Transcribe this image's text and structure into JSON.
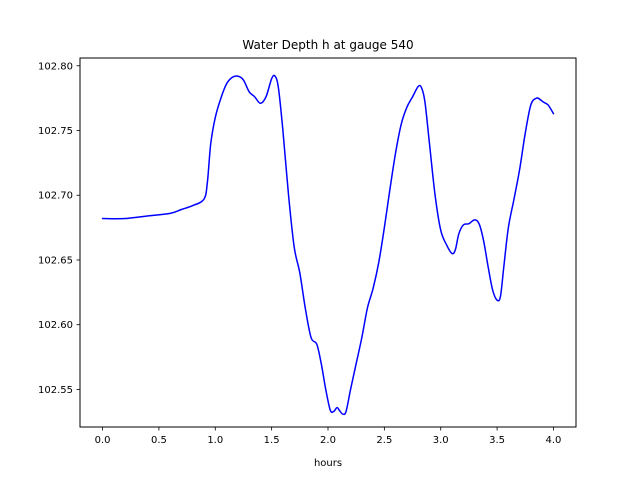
{
  "chart_data": {
    "type": "line",
    "title": "Water Depth h at gauge 540",
    "xlabel": "hours",
    "ylabel": "",
    "xlim": [
      -0.2,
      4.2
    ],
    "ylim": [
      102.521,
      102.806
    ],
    "x_ticks": [
      0.0,
      0.5,
      1.0,
      1.5,
      2.0,
      2.5,
      3.0,
      3.5,
      4.0
    ],
    "x_tick_labels": [
      "0.0",
      "0.5",
      "1.0",
      "1.5",
      "2.0",
      "2.5",
      "3.0",
      "3.5",
      "4.0"
    ],
    "y_ticks": [
      102.55,
      102.6,
      102.65,
      102.7,
      102.75,
      102.8
    ],
    "y_tick_labels": [
      "102.55",
      "102.60",
      "102.65",
      "102.70",
      "102.75",
      "102.80"
    ],
    "grid": false,
    "legend": "none",
    "series": [
      {
        "color": "#0000ff",
        "x": [
          0.0,
          0.2,
          0.4,
          0.6,
          0.7,
          0.8,
          0.9,
          0.93,
          0.96,
          1.0,
          1.05,
          1.1,
          1.15,
          1.2,
          1.25,
          1.3,
          1.35,
          1.4,
          1.45,
          1.5,
          1.53,
          1.56,
          1.6,
          1.65,
          1.7,
          1.75,
          1.8,
          1.85,
          1.9,
          1.94,
          1.98,
          2.02,
          2.05,
          2.08,
          2.1,
          2.13,
          2.16,
          2.2,
          2.25,
          2.3,
          2.35,
          2.4,
          2.45,
          2.5,
          2.55,
          2.6,
          2.65,
          2.7,
          2.75,
          2.8,
          2.83,
          2.86,
          2.9,
          2.95,
          3.0,
          3.05,
          3.1,
          3.13,
          3.16,
          3.2,
          3.25,
          3.3,
          3.34,
          3.38,
          3.42,
          3.46,
          3.5,
          3.53,
          3.56,
          3.6,
          3.65,
          3.7,
          3.75,
          3.8,
          3.85,
          3.88,
          3.91,
          3.95,
          3.98,
          4.0
        ],
        "y": [
          102.682,
          102.682,
          102.684,
          102.686,
          102.689,
          102.692,
          102.697,
          102.71,
          102.74,
          102.76,
          102.775,
          102.786,
          102.791,
          102.792,
          102.789,
          102.78,
          102.776,
          102.771,
          102.776,
          102.79,
          102.792,
          102.783,
          102.75,
          102.7,
          102.66,
          102.64,
          102.612,
          102.59,
          102.585,
          102.57,
          102.55,
          102.534,
          102.533,
          102.536,
          102.534,
          102.531,
          102.533,
          102.55,
          102.57,
          102.59,
          102.613,
          102.628,
          102.648,
          102.675,
          102.705,
          102.733,
          102.755,
          102.768,
          102.776,
          102.784,
          102.783,
          102.772,
          102.74,
          102.7,
          102.673,
          102.662,
          102.655,
          102.658,
          102.67,
          102.677,
          102.678,
          102.681,
          102.678,
          102.665,
          102.645,
          102.627,
          102.619,
          102.622,
          102.645,
          102.675,
          102.697,
          102.72,
          102.748,
          102.77,
          102.775,
          102.774,
          102.772,
          102.77,
          102.766,
          102.763
        ]
      }
    ]
  }
}
